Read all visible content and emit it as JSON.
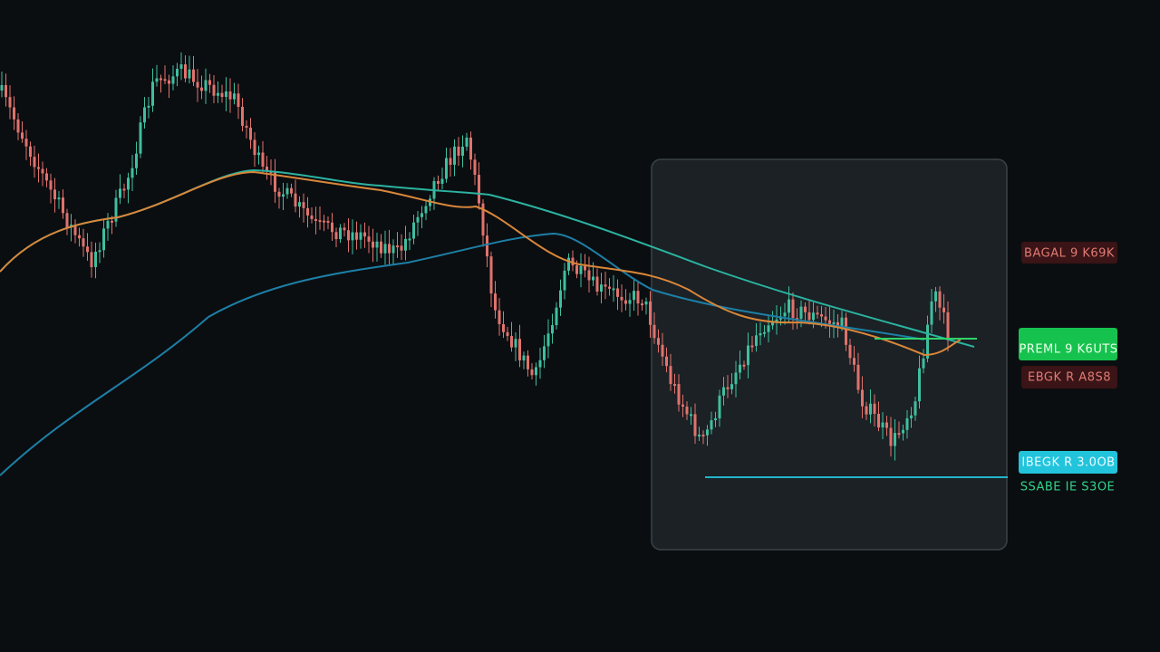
{
  "price_labels": [
    "BAGAL 9 K69K",
    "PREML 9 K6UTS",
    "EBGK R A8S8",
    "IBEGK R 3.0OB",
    "SSABE IE S3OE"
  ]
}
